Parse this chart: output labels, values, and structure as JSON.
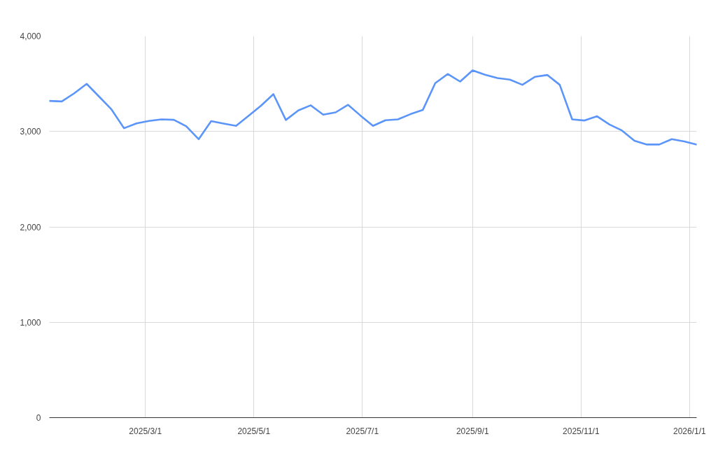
{
  "chart_data": {
    "type": "line",
    "x": [
      "2025-01-06",
      "2025-01-13",
      "2025-01-20",
      "2025-01-27",
      "2025-02-03",
      "2025-02-10",
      "2025-02-17",
      "2025-02-24",
      "2025-03-03",
      "2025-03-10",
      "2025-03-17",
      "2025-03-24",
      "2025-03-31",
      "2025-04-07",
      "2025-04-14",
      "2025-04-21",
      "2025-04-28",
      "2025-05-05",
      "2025-05-12",
      "2025-05-19",
      "2025-05-26",
      "2025-06-02",
      "2025-06-09",
      "2025-06-16",
      "2025-06-23",
      "2025-06-30",
      "2025-07-07",
      "2025-07-14",
      "2025-07-21",
      "2025-07-28",
      "2025-08-04",
      "2025-08-11",
      "2025-08-18",
      "2025-08-25",
      "2025-09-01",
      "2025-09-08",
      "2025-09-15",
      "2025-09-22",
      "2025-09-29",
      "2025-10-06",
      "2025-10-13",
      "2025-10-20",
      "2025-10-27",
      "2025-11-03",
      "2025-11-10",
      "2025-11-17",
      "2025-11-24",
      "2025-12-01",
      "2025-12-08",
      "2025-12-15",
      "2025-12-22",
      "2025-12-29",
      "2026-01-05"
    ],
    "series": [
      {
        "color": "#5b95f9",
        "values": [
          3320,
          3315,
          3400,
          3499,
          3365,
          3230,
          3034,
          3085,
          3110,
          3127,
          3122,
          3054,
          2919,
          3108,
          3083,
          3059,
          3164,
          3270,
          3391,
          3120,
          3220,
          3274,
          3176,
          3200,
          3279,
          3166,
          3059,
          3117,
          3127,
          3181,
          3225,
          3506,
          3602,
          3523,
          3640,
          3595,
          3560,
          3543,
          3489,
          3572,
          3592,
          3489,
          3127,
          3115,
          3159,
          3073,
          3010,
          2902,
          2863,
          2863,
          2919,
          2895,
          2863
        ]
      }
    ],
    "xlim": [
      "2025-01-06",
      "2026-01-05"
    ],
    "xticks": [
      {
        "value": "2025-03-01",
        "label": "2025/3/1"
      },
      {
        "value": "2025-05-01",
        "label": "2025/5/1"
      },
      {
        "value": "2025-07-01",
        "label": "2025/7/1"
      },
      {
        "value": "2025-09-01",
        "label": "2025/9/1"
      },
      {
        "value": "2025-11-01",
        "label": "2025/11/1"
      },
      {
        "value": "2026-01-01",
        "label": "2026/1/1"
      }
    ],
    "ylim": [
      0,
      4000
    ],
    "yticks": [
      {
        "value": 0,
        "label": "0"
      },
      {
        "value": 1000,
        "label": "1,000"
      },
      {
        "value": 2000,
        "label": "2,000"
      },
      {
        "value": 3000,
        "label": "3,000"
      },
      {
        "value": 4000,
        "label": "4,000"
      }
    ],
    "grid": true
  }
}
